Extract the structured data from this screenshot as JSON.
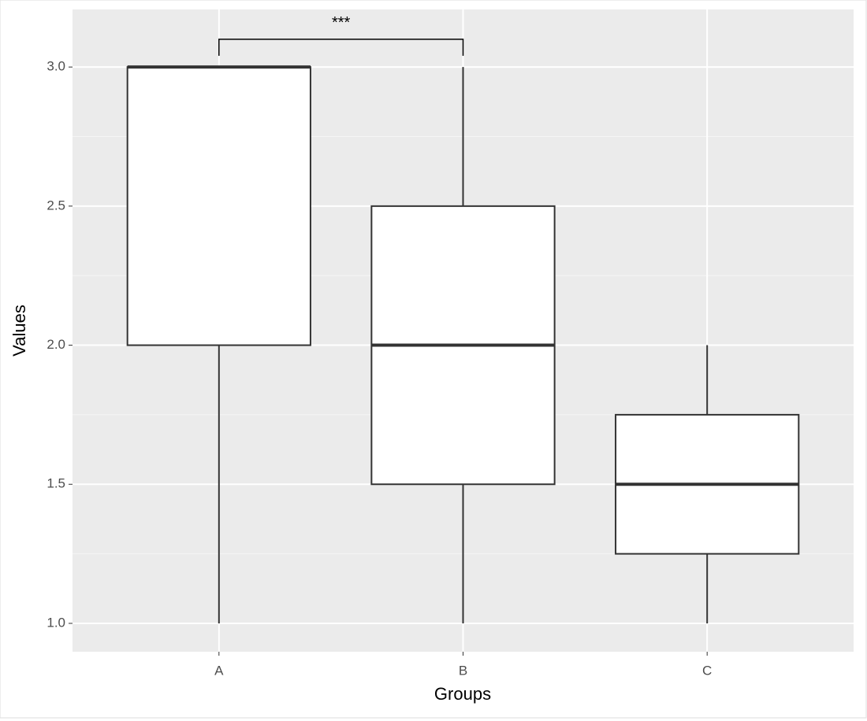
{
  "chart_data": {
    "type": "boxplot",
    "x_label": "Groups",
    "y_label": "Values",
    "categories": [
      "A",
      "B",
      "C"
    ],
    "boxes": [
      {
        "min": 1,
        "q1": 2,
        "median": 3,
        "q3": 3,
        "max": 3
      },
      {
        "min": 1,
        "q1": 1.5,
        "median": 2,
        "q3": 2.5,
        "max": 3
      },
      {
        "min": 1,
        "q1": 1.25,
        "median": 1.5,
        "q3": 1.75,
        "max": 2
      }
    ],
    "fill": "#ffffff",
    "stroke": "#333333",
    "panel_color": "#ebebeb",
    "ylim": [
      0.898,
      3.207
    ],
    "yticks": [
      {
        "value": 1,
        "label": "1.0"
      },
      {
        "value": 1.5,
        "label": "1.5"
      },
      {
        "value": 2,
        "label": "2.0"
      },
      {
        "value": 2.5,
        "label": "2.5"
      },
      {
        "value": 3,
        "label": "3.0"
      }
    ],
    "minor_yticks": [
      1.25,
      1.75,
      2.25,
      2.75
    ],
    "grid": true,
    "annotations": [
      {
        "label": "***",
        "between": [
          "A",
          "B"
        ],
        "y": 3.1
      }
    ]
  }
}
